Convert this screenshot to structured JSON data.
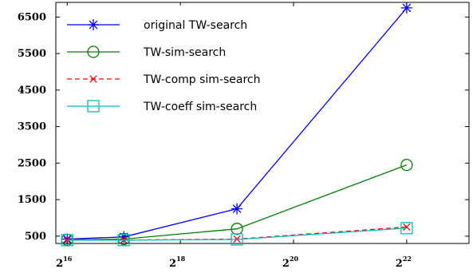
{
  "chart_data": {
    "type": "line",
    "title": "",
    "xlabel": "",
    "ylabel": "",
    "x_scale": "log2",
    "x_ticks": [
      {
        "base": "2",
        "exp": "16",
        "value": 65536
      },
      {
        "base": "2",
        "exp": "18",
        "value": 262144
      },
      {
        "base": "2",
        "exp": "20",
        "value": 1048576
      },
      {
        "base": "2",
        "exp": "22",
        "value": 4194304
      }
    ],
    "xlim": [
      57000,
      9000000
    ],
    "y_ticks": [
      "500",
      "1500",
      "2500",
      "3500",
      "4500",
      "5500",
      "6500"
    ],
    "ylim": [
      300,
      6900
    ],
    "legend_position": "top-left",
    "grid": false,
    "series": [
      {
        "name": "original TW-search",
        "color": "#0000ff",
        "marker": "star",
        "dash": "",
        "x": [
          65536,
          131072,
          524288,
          4194304
        ],
        "y": [
          420,
          480,
          1250,
          6750
        ]
      },
      {
        "name": "TW-sim-search",
        "color": "#008000",
        "marker": "circle",
        "dash": "",
        "x": [
          65536,
          131072,
          524288,
          4194304
        ],
        "y": [
          400,
          420,
          700,
          2450
        ]
      },
      {
        "name": "TW-comp sim-search",
        "color": "#ff0000",
        "marker": "x",
        "dash": "6,4",
        "x": [
          65536,
          131072,
          524288,
          4194304
        ],
        "y": [
          390,
          395,
          420,
          750
        ]
      },
      {
        "name": "TW-coeff sim-search",
        "color": "#00bfbf",
        "marker": "square",
        "dash": "",
        "x": [
          65536,
          131072,
          524288,
          4194304
        ],
        "y": [
          390,
          392,
          410,
          720
        ]
      }
    ]
  }
}
